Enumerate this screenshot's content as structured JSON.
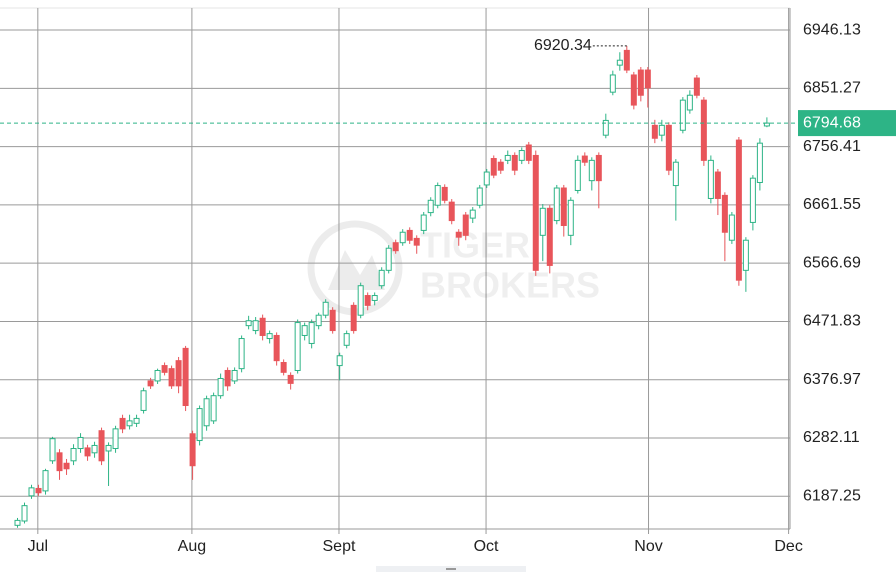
{
  "chart_data": {
    "type": "candlestick",
    "x": [
      0,
      1,
      2,
      3,
      4,
      5,
      6,
      7,
      8,
      9,
      10,
      11,
      12,
      13,
      14,
      15,
      16,
      17,
      18,
      19,
      20,
      21,
      22,
      23,
      24,
      25,
      26,
      27,
      28,
      29,
      30,
      31,
      32,
      33,
      34,
      35,
      36,
      37,
      38,
      39,
      40,
      41,
      42,
      43,
      44,
      45,
      46,
      47,
      48,
      49,
      50,
      51,
      52,
      53,
      54,
      55,
      56,
      57,
      58,
      59,
      60,
      61,
      62,
      63,
      64,
      65,
      66,
      67,
      68,
      69,
      70,
      71,
      72,
      73,
      74,
      75,
      76,
      77,
      78,
      79,
      80,
      81,
      82,
      83,
      84,
      85,
      86,
      87,
      88,
      89,
      90,
      91,
      92,
      93,
      94,
      95,
      96,
      97,
      98,
      99,
      100,
      101,
      102,
      103,
      104,
      105,
      106,
      107
    ],
    "open": [
      6140,
      6147,
      6188,
      6200,
      6196,
      6245,
      6258,
      6241,
      6245,
      6265,
      6266,
      6258,
      6294,
      6261,
      6265,
      6314,
      6302,
      6306,
      6327,
      6375,
      6375,
      6400,
      6395,
      6408,
      6428,
      6289,
      6278,
      6302,
      6310,
      6351,
      6392,
      6375,
      6395,
      6465,
      6457,
      6477,
      6444,
      6449,
      6405,
      6384,
      6392,
      6449,
      6436,
      6465,
      6482,
      6490,
      6400,
      6433,
      6498,
      6482,
      6514,
      6506,
      6530,
      6555,
      6600,
      6600,
      6620,
      6607,
      6620,
      6649,
      6661,
      6690,
      6666,
      6617,
      6645,
      6640,
      6661,
      6694,
      6737,
      6731,
      6734,
      6742,
      6734,
      6759,
      6742,
      6612,
      6656,
      6636,
      6689,
      6612,
      6685,
      6741,
      6701,
      6742,
      6775,
      6845,
      6889,
      6913,
      6873,
      6881,
      6881,
      6791,
      6775,
      6791,
      6693,
      6783,
      6816,
      6868,
      6832,
      6672,
      6715,
      6677,
      6604,
      6767,
      6555,
      6633,
      6698,
      6790
    ],
    "high": [
      6152,
      6177,
      6206,
      6206,
      6232,
      6284,
      6264,
      6248,
      6272,
      6290,
      6271,
      6276,
      6299,
      6275,
      6302,
      6320,
      6320,
      6320,
      6364,
      6380,
      6395,
      6405,
      6400,
      6414,
      6432,
      6294,
      6335,
      6351,
      6356,
      6387,
      6397,
      6397,
      6449,
      6481,
      6479,
      6483,
      6457,
      6454,
      6410,
      6389,
      6475,
      6470,
      6475,
      6486,
      6508,
      6495,
      6421,
      6457,
      6503,
      6535,
      6519,
      6519,
      6560,
      6596,
      6605,
      6622,
      6625,
      6612,
      6650,
      6674,
      6698,
      6695,
      6671,
      6622,
      6650,
      6658,
      6694,
      6720,
      6742,
      6736,
      6750,
      6747,
      6755,
      6764,
      6750,
      6663,
      6661,
      6694,
      6694,
      6674,
      6742,
      6747,
      6739,
      6747,
      6810,
      6880,
      6910,
      6920.34,
      6878,
      6886,
      6886,
      6800,
      6800,
      6796,
      6736,
      6837,
      6848,
      6873,
      6837,
      6742,
      6720,
      6682,
      6650,
      6772,
      6609,
      6710,
      6770,
      6804
    ],
    "low": [
      6136,
      6143,
      6183,
      6188,
      6190,
      6240,
      6214,
      6222,
      6238,
      6258,
      6245,
      6250,
      6238,
      6204,
      6258,
      6290,
      6296,
      6300,
      6322,
      6362,
      6370,
      6384,
      6362,
      6355,
      6326,
      6214,
      6270,
      6294,
      6305,
      6346,
      6359,
      6370,
      6389,
      6459,
      6451,
      6441,
      6436,
      6400,
      6384,
      6361,
      6387,
      6441,
      6428,
      6459,
      6477,
      6452,
      6376,
      6428,
      6452,
      6477,
      6490,
      6498,
      6525,
      6550,
      6582,
      6595,
      6598,
      6582,
      6614,
      6643,
      6656,
      6664,
      6630,
      6595,
      6604,
      6632,
      6656,
      6689,
      6705,
      6712,
      6728,
      6710,
      6728,
      6728,
      6546,
      6570,
      6550,
      6630,
      6610,
      6596,
      6680,
      6725,
      6685,
      6656,
      6770,
      6840,
      6880,
      6876,
      6817,
      6830,
      6820,
      6762,
      6765,
      6710,
      6636,
      6778,
      6810,
      6835,
      6725,
      6664,
      6645,
      6570,
      6598,
      6530,
      6520,
      6620,
      6685,
      6788
    ],
    "close": [
      6148,
      6172,
      6201,
      6193,
      6229,
      6281,
      6229,
      6232,
      6265,
      6283,
      6253,
      6270,
      6245,
      6270,
      6297,
      6297,
      6310,
      6314,
      6359,
      6367,
      6392,
      6389,
      6367,
      6367,
      6335,
      6237,
      6330,
      6346,
      6351,
      6379,
      6367,
      6392,
      6444,
      6473,
      6473,
      6449,
      6452,
      6408,
      6389,
      6371,
      6470,
      6465,
      6470,
      6482,
      6503,
      6457,
      6416,
      6452,
      6457,
      6530,
      6498,
      6514,
      6555,
      6591,
      6587,
      6617,
      6604,
      6596,
      6645,
      6669,
      6693,
      6669,
      6636,
      6609,
      6612,
      6653,
      6689,
      6715,
      6710,
      6718,
      6742,
      6718,
      6750,
      6734,
      6555,
      6656,
      6563,
      6689,
      6628,
      6669,
      6734,
      6731,
      6734,
      6701,
      6799,
      6873,
      6897,
      6881,
      6824,
      6840,
      6852,
      6770,
      6791,
      6718,
      6731,
      6832,
      6840,
      6840,
      6734,
      6734,
      6672,
      6617,
      6645,
      6539,
      6604,
      6705,
      6762,
      6794.68
    ],
    "up_color": "#2db486",
    "down_color": "#e8555a",
    "xlim": [
      -2.5,
      110.3
    ],
    "ylim": [
      6134,
      6982
    ],
    "xticks": [
      {
        "value": 2.9,
        "label": "Jul"
      },
      {
        "value": 24.9,
        "label": "Aug"
      },
      {
        "value": 45.9,
        "label": "Sept"
      },
      {
        "value": 66.9,
        "label": "Oct"
      },
      {
        "value": 90.1,
        "label": "Nov"
      },
      {
        "value": 110.1,
        "label": "Dec"
      }
    ],
    "yticks": [
      6187.25,
      6282.11,
      6376.97,
      6471.83,
      6566.69,
      6661.55,
      6756.41,
      6851.27,
      6946.13
    ],
    "grid": true,
    "watermark": [
      "TIGER",
      "BROKERS"
    ]
  }
}
